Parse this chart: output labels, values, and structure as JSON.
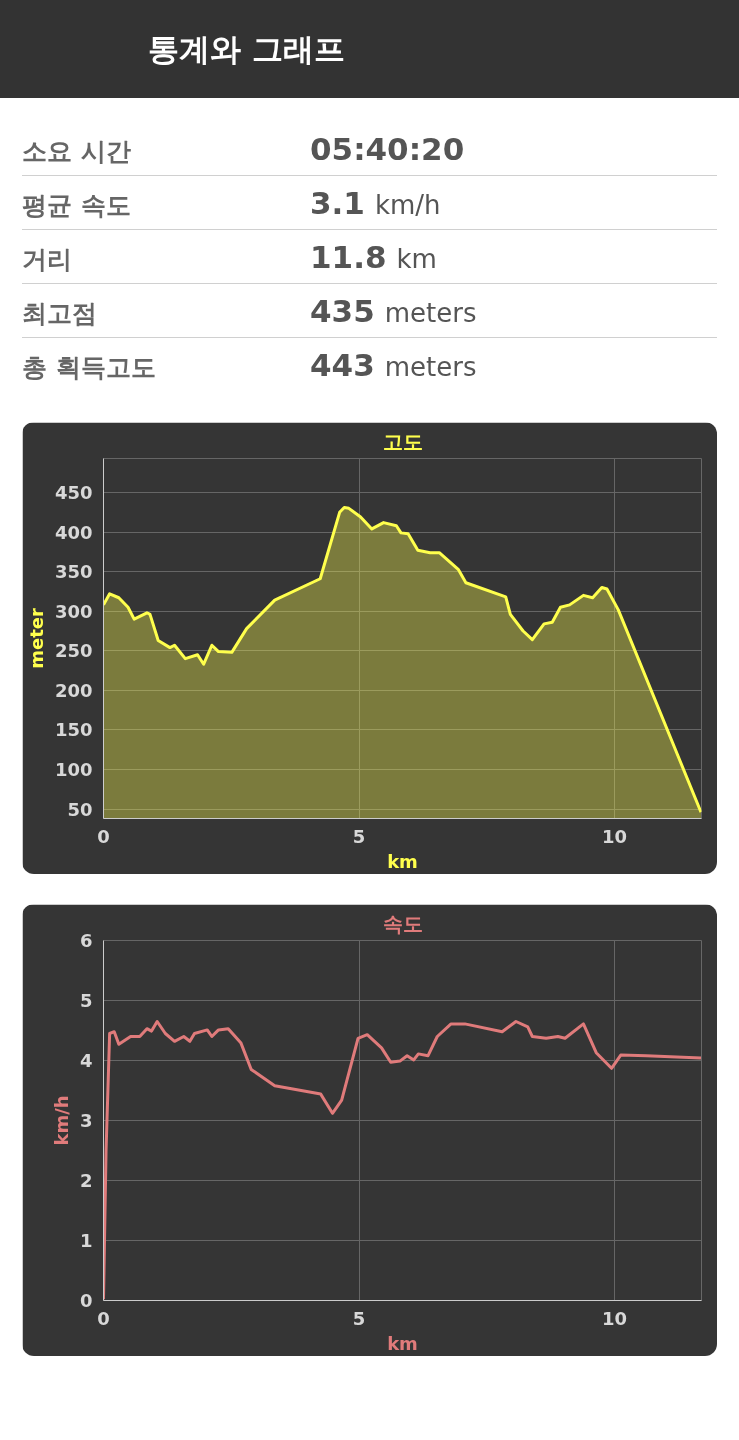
{
  "chart_data": [
    {
      "type": "other",
      "title": "통계와 그래프",
      "annotations": [
        "소요 시간",
        "05:40:20",
        "평균 속도",
        "3.1 km/h",
        "거리",
        "11.8 km",
        "최고점",
        "435 meters",
        "총 획득고도",
        "443 meters"
      ]
    },
    {
      "type": "area",
      "title": "고도",
      "xlabel": "km",
      "ylabel": "meter",
      "xlim": [
        0,
        11.7
      ],
      "ylim": [
        38,
        493
      ],
      "xticks": [
        0,
        5,
        10
      ],
      "yticks": [
        50,
        100,
        150,
        200,
        250,
        300,
        350,
        400,
        450
      ],
      "grid": true,
      "x": [
        0,
        0.12,
        0.3,
        0.48,
        0.6,
        0.85,
        0.91,
        1.07,
        1.3,
        1.39,
        1.6,
        1.84,
        1.96,
        2.12,
        2.25,
        2.51,
        2.8,
        3.35,
        4.24,
        4.62,
        4.71,
        4.8,
        5.03,
        5.25,
        5.48,
        5.73,
        5.82,
        5.96,
        6.15,
        6.39,
        6.57,
        6.94,
        7.09,
        7.87,
        7.96,
        8.21,
        8.39,
        8.62,
        8.78,
        8.94,
        9.12,
        9.39,
        9.57,
        9.75,
        9.85,
        10.07,
        11.69
      ],
      "series": [
        {
          "color": "#ffff4d",
          "values": [
            308,
            322,
            317,
            305,
            290,
            298,
            296,
            263,
            254,
            257,
            240,
            245,
            233,
            257,
            249,
            248,
            278,
            314,
            341,
            425,
            431,
            430,
            419,
            404,
            412,
            408,
            399,
            398,
            377,
            374,
            374,
            353,
            336,
            318,
            296,
            275,
            264,
            284,
            286,
            305,
            308,
            320,
            317,
            330,
            328,
            302,
            46
          ]
        }
      ]
    },
    {
      "type": "line",
      "title": "속도",
      "xlabel": "km",
      "ylabel": "km/h",
      "xlim": [
        0,
        11.7
      ],
      "ylim": [
        0,
        6
      ],
      "xticks": [
        0,
        5,
        10
      ],
      "yticks": [
        0,
        1,
        2,
        3,
        4,
        5,
        6
      ],
      "grid": true,
      "x": [
        0,
        0.05,
        0.12,
        0.21,
        0.3,
        0.53,
        0.71,
        0.85,
        0.94,
        1.05,
        1.21,
        1.39,
        1.57,
        1.69,
        1.78,
        2.03,
        2.12,
        2.25,
        2.44,
        2.69,
        2.89,
        3.35,
        4.25,
        4.48,
        4.66,
        4.98,
        5.16,
        5.44,
        5.62,
        5.8,
        5.94,
        6.07,
        6.16,
        6.35,
        6.53,
        6.8,
        7.07,
        7.8,
        8.07,
        8.3,
        8.39,
        8.66,
        8.89,
        9.03,
        9.39,
        9.64,
        9.94,
        10.12,
        10.62,
        11.69
      ],
      "series": [
        {
          "color": "#e07b7b",
          "values": [
            0.02,
            2.5,
            4.45,
            4.48,
            4.27,
            4.4,
            4.4,
            4.53,
            4.49,
            4.65,
            4.45,
            4.32,
            4.4,
            4.32,
            4.45,
            4.51,
            4.4,
            4.51,
            4.53,
            4.29,
            3.85,
            3.58,
            3.44,
            3.12,
            3.34,
            4.37,
            4.43,
            4.21,
            3.97,
            3.99,
            4.08,
            4.01,
            4.11,
            4.08,
            4.4,
            4.61,
            4.61,
            4.48,
            4.65,
            4.56,
            4.4,
            4.37,
            4.4,
            4.37,
            4.61,
            4.13,
            3.87,
            4.09,
            4.08,
            4.04
          ]
        }
      ]
    }
  ]
}
